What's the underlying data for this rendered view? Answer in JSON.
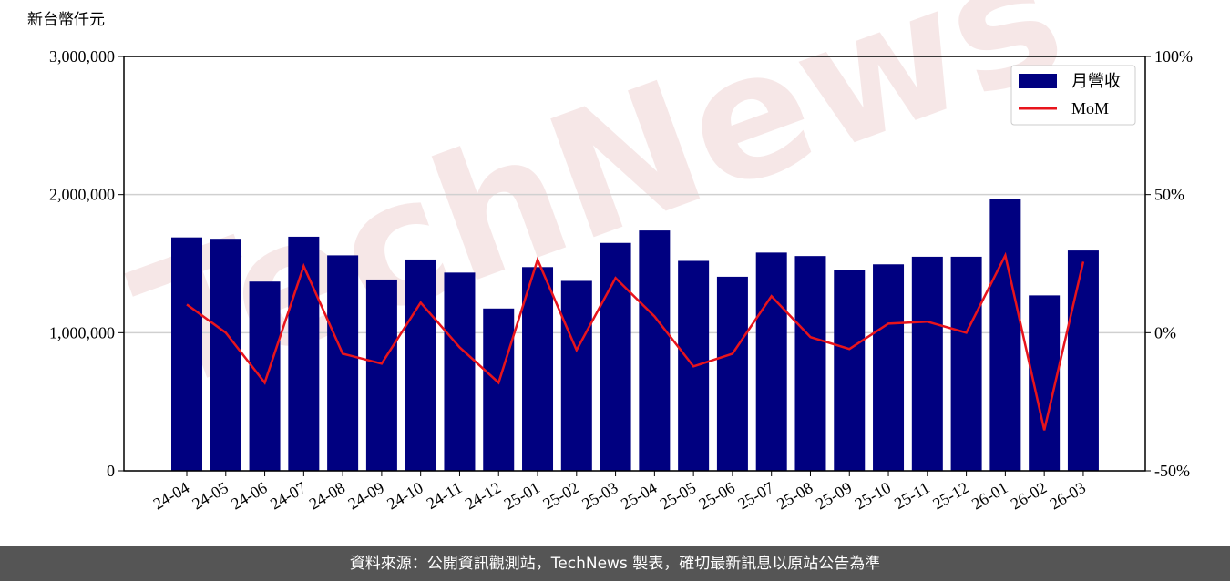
{
  "chart_data": {
    "type": "bar",
    "y_label": "新台幣仟元",
    "watermark": "TechNews",
    "categories": [
      "24-04",
      "24-05",
      "24-06",
      "24-07",
      "24-08",
      "24-09",
      "24-10",
      "24-11",
      "24-12",
      "25-01",
      "25-02",
      "25-03",
      "25-04",
      "25-05",
      "25-06",
      "25-07",
      "25-08",
      "25-09",
      "25-10",
      "25-11",
      "25-12",
      "26-01",
      "26-02",
      "26-03"
    ],
    "series": [
      {
        "name": "月營收",
        "type": "bar",
        "color": "#000080",
        "values": [
          1690000,
          1680000,
          1370000,
          1695000,
          1560000,
          1385000,
          1530000,
          1435000,
          1175000,
          1475000,
          1375000,
          1650000,
          1740000,
          1520000,
          1405000,
          1580000,
          1555000,
          1455000,
          1495000,
          1550000,
          1550000,
          1970000,
          1270000,
          1595000
        ]
      },
      {
        "name": "MoM",
        "type": "line",
        "axis": "y2",
        "color": "#e8141c",
        "values": [
          10.2,
          0,
          -18.1,
          24.1,
          -7.6,
          -11.2,
          10.9,
          -5.3,
          -18.1,
          26.4,
          -6.3,
          19.8,
          5.9,
          -12.2,
          -7.6,
          13.2,
          -1.6,
          -5.9,
          3.3,
          4.0,
          0,
          28.0,
          -35.3,
          25.7
        ]
      }
    ],
    "ylim": [
      0,
      3000000
    ],
    "yticks": [
      0,
      {
        "value": 1000000,
        "label": "1,000,000"
      },
      {
        "value": 2000000,
        "label": "2,000,000"
      },
      {
        "value": 3000000,
        "label": "3,000,000"
      }
    ],
    "y2lim": [
      -50,
      100
    ],
    "y2ticks": [
      {
        "value": -50,
        "label": "-50%"
      },
      {
        "value": 0,
        "label": "0%"
      },
      {
        "value": 50,
        "label": "50%"
      },
      {
        "value": 100,
        "label": "100%"
      }
    ],
    "grid": true,
    "legend": "upper right",
    "footer": "資料來源：公開資訊觀測站，TechNews 製表，確切最新訊息以原站公告為準"
  }
}
